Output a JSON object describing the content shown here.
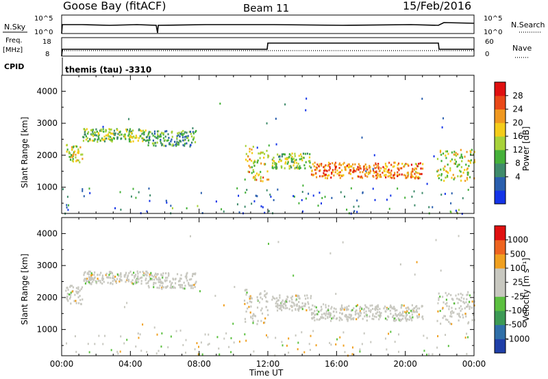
{
  "header": {
    "station": "Goose Bay (fitACF)",
    "beam": "Beam 11",
    "date": "15/Feb/2016"
  },
  "top_panels": {
    "nsky_label": "N.Sky",
    "nsky_hi": "10^5",
    "nsky_lo": "10^0",
    "nsearch_label": "N.Search",
    "nsearch_hi": "10^5",
    "nsearch_lo": "10^0",
    "freq_label": "Freq.",
    "freq_unit": "[MHz]",
    "freq_hi": "18",
    "freq_lo": "8",
    "nave_label": "Nave",
    "nave_hi": "60",
    "nave_lo": "0",
    "cpid_label": "CPID",
    "cpid_value": "themis (tau)  -3310"
  },
  "power_panel": {
    "ylabel": "Slant Range [km]",
    "cbar_label": "Power [dB]",
    "cbar_ticks": [
      "28",
      "24",
      "20",
      "16",
      "12",
      "8",
      "4"
    ],
    "cbar_colors": [
      "#1434e8",
      "#2a5fae",
      "#3f8b6b",
      "#46b13a",
      "#a8d23a",
      "#f4cc1a",
      "#f09820",
      "#e94818",
      "#e01010"
    ]
  },
  "velocity_panel": {
    "ylabel": "Slant Range [km]",
    "cbar_label": "Velocity [m s⁻¹]",
    "cbar_ticks": [
      "1000",
      "500",
      "100",
      "25",
      "-25",
      "-100",
      "-500",
      "-1000"
    ],
    "cbar_colors": [
      "#1f3fa8",
      "#2f6fa8",
      "#3c9a55",
      "#5cc040",
      "#c8c8c0",
      "#c8c8c0",
      "#f0a020",
      "#ee6420",
      "#e01010"
    ]
  },
  "x_axis": {
    "label": "Time UT",
    "ticks": [
      "00:00",
      "04:00",
      "08:00",
      "12:00",
      "16:00",
      "20:00",
      "00:00"
    ]
  },
  "chart_data": [
    {
      "type": "heatmap",
      "title": "Power",
      "xlabel": "Time UT",
      "ylabel": "Slant Range [km]",
      "y_ticks": [
        1000,
        2000,
        3000,
        4000
      ],
      "x_range_hours": [
        0,
        24
      ],
      "y_range_km": [
        180,
        4500
      ],
      "colorbar_label": "Power [dB]",
      "colorbar_range": [
        0,
        30
      ],
      "bands": [
        {
          "t0": 0.2,
          "t1": 1.2,
          "r0": 1800,
          "r1": 2400,
          "dB": 16
        },
        {
          "t0": 1.2,
          "t1": 5.0,
          "r0": 2450,
          "r1": 2850,
          "dB": 14
        },
        {
          "t0": 5.0,
          "t1": 7.8,
          "r0": 2300,
          "r1": 2800,
          "dB": 10
        },
        {
          "t0": 10.6,
          "t1": 12.0,
          "r0": 1200,
          "r1": 2300,
          "dB": 18
        },
        {
          "t0": 12.2,
          "t1": 14.5,
          "r0": 1600,
          "r1": 2100,
          "dB": 14
        },
        {
          "t0": 14.5,
          "t1": 21.0,
          "r0": 1300,
          "r1": 1800,
          "dB": 22
        },
        {
          "t0": 21.8,
          "t1": 24.0,
          "r0": 1200,
          "r1": 2200,
          "dB": 16
        }
      ]
    },
    {
      "type": "heatmap",
      "title": "Velocity",
      "xlabel": "Time UT",
      "ylabel": "Slant Range [km]",
      "y_ticks": [
        1000,
        2000,
        3000,
        4000
      ],
      "x_range_hours": [
        0,
        24
      ],
      "y_range_km": [
        180,
        4500
      ],
      "colorbar_label": "Velocity [m s⁻¹]",
      "colorbar_range": [
        -1000,
        1000
      ],
      "bands": [
        {
          "t0": 0.2,
          "t1": 1.2,
          "r0": 1800,
          "r1": 2400,
          "v": 0
        },
        {
          "t0": 1.2,
          "t1": 5.0,
          "r0": 2450,
          "r1": 2850,
          "v": 0
        },
        {
          "t0": 5.0,
          "t1": 7.8,
          "r0": 2300,
          "r1": 2800,
          "v": 0
        },
        {
          "t0": 10.6,
          "t1": 12.0,
          "r0": 1200,
          "r1": 2300,
          "v": 0
        },
        {
          "t0": 12.2,
          "t1": 14.5,
          "r0": 1600,
          "r1": 2100,
          "v": 0
        },
        {
          "t0": 14.5,
          "t1": 21.0,
          "r0": 1300,
          "r1": 1800,
          "v": 0
        },
        {
          "t0": 21.8,
          "t1": 24.0,
          "r0": 1200,
          "r1": 2200,
          "v": 0
        }
      ]
    }
  ]
}
